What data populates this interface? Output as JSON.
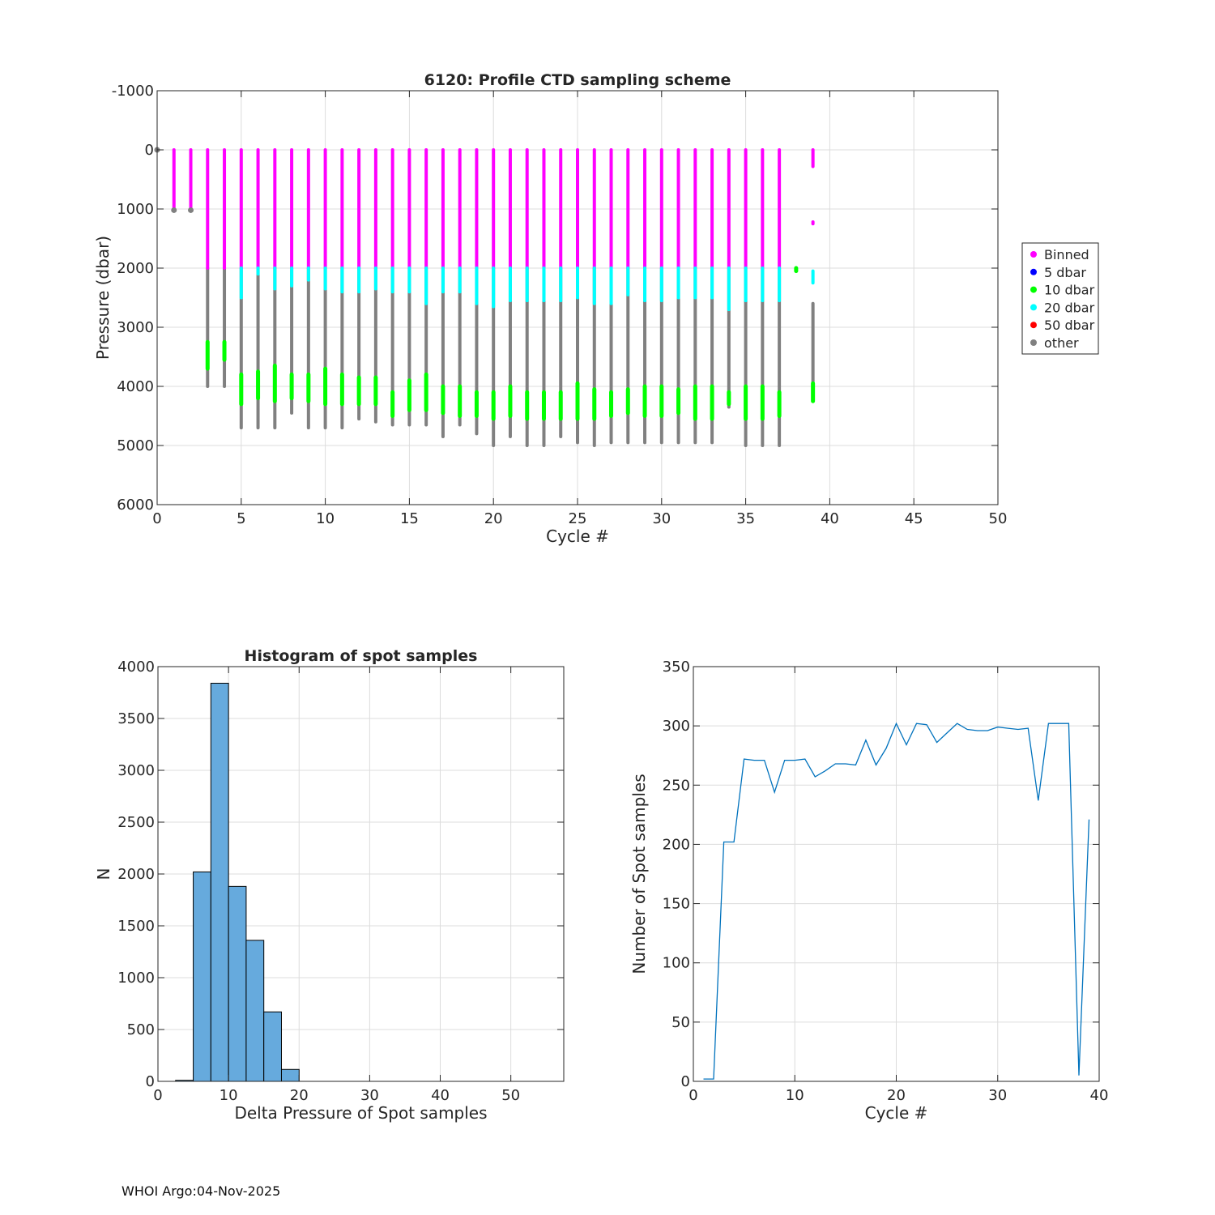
{
  "footer": "WHOI Argo:04-Nov-2025",
  "chart_data": [
    {
      "type": "scatter",
      "title": "6120: Profile CTD sampling scheme",
      "xlabel": "Cycle #",
      "ylabel": "Pressure (dbar)",
      "xlim": [
        0,
        50
      ],
      "ylim": [
        -1000,
        6000
      ],
      "y_reversed": true,
      "xticks": [
        0,
        5,
        10,
        15,
        20,
        25,
        30,
        35,
        40,
        45,
        50
      ],
      "yticks": [
        -1000,
        0,
        1000,
        2000,
        3000,
        4000,
        5000,
        6000
      ],
      "grid": true,
      "legend_position": "outside-right",
      "legend": [
        {
          "label": "Binned",
          "color": "#ff00ff"
        },
        {
          "label": "5 dbar",
          "color": "#0000ff"
        },
        {
          "label": "10 dbar",
          "color": "#00ff00"
        },
        {
          "label": "20 dbar",
          "color": "#00ffff"
        },
        {
          "label": "50 dbar",
          "color": "#ff0000"
        },
        {
          "label": "other",
          "color": "#808080"
        }
      ],
      "series": [
        {
          "name": "Binned",
          "color": "#ff00ff",
          "segments": [
            [
              1,
              0,
              1000
            ],
            [
              2,
              0,
              1000
            ],
            [
              3,
              0,
              2000
            ],
            [
              4,
              0,
              2000
            ],
            [
              5,
              0,
              2000
            ],
            [
              6,
              0,
              2000
            ],
            [
              7,
              0,
              2000
            ],
            [
              8,
              0,
              2000
            ],
            [
              9,
              0,
              2000
            ],
            [
              10,
              0,
              2000
            ],
            [
              11,
              0,
              2000
            ],
            [
              12,
              0,
              2000
            ],
            [
              13,
              0,
              2000
            ],
            [
              14,
              0,
              2000
            ],
            [
              15,
              0,
              2000
            ],
            [
              16,
              0,
              2000
            ],
            [
              17,
              0,
              2000
            ],
            [
              18,
              0,
              2000
            ],
            [
              19,
              0,
              2000
            ],
            [
              20,
              0,
              2000
            ],
            [
              21,
              0,
              2000
            ],
            [
              22,
              0,
              2000
            ],
            [
              23,
              0,
              2000
            ],
            [
              24,
              0,
              2000
            ],
            [
              25,
              0,
              2000
            ],
            [
              26,
              0,
              2000
            ],
            [
              27,
              0,
              2000
            ],
            [
              28,
              0,
              2000
            ],
            [
              29,
              0,
              2000
            ],
            [
              30,
              0,
              2000
            ],
            [
              31,
              0,
              2000
            ],
            [
              32,
              0,
              2000
            ],
            [
              33,
              0,
              2000
            ],
            [
              34,
              0,
              2000
            ],
            [
              35,
              0,
              2000
            ],
            [
              36,
              0,
              2000
            ],
            [
              37,
              0,
              2000
            ],
            [
              39,
              0,
              280
            ],
            [
              39,
              1220,
              1250
            ]
          ]
        },
        {
          "name": "20 dbar",
          "color": "#00ffff",
          "segments": [
            [
              5,
              2000,
              2500
            ],
            [
              6,
              2000,
              2100
            ],
            [
              7,
              2000,
              2350
            ],
            [
              8,
              2000,
              2300
            ],
            [
              9,
              2000,
              2200
            ],
            [
              10,
              2000,
              2350
            ],
            [
              11,
              2000,
              2400
            ],
            [
              12,
              2000,
              2400
            ],
            [
              13,
              2000,
              2350
            ],
            [
              14,
              2000,
              2400
            ],
            [
              15,
              2000,
              2400
            ],
            [
              16,
              2000,
              2600
            ],
            [
              17,
              2000,
              2400
            ],
            [
              18,
              2000,
              2400
            ],
            [
              19,
              2000,
              2600
            ],
            [
              20,
              2000,
              2650
            ],
            [
              21,
              2000,
              2550
            ],
            [
              22,
              2000,
              2550
            ],
            [
              23,
              2000,
              2550
            ],
            [
              24,
              2000,
              2550
            ],
            [
              25,
              2000,
              2500
            ],
            [
              26,
              2000,
              2600
            ],
            [
              27,
              2000,
              2600
            ],
            [
              28,
              2000,
              2450
            ],
            [
              29,
              2000,
              2550
            ],
            [
              30,
              2000,
              2550
            ],
            [
              31,
              2000,
              2500
            ],
            [
              32,
              2000,
              2500
            ],
            [
              33,
              2000,
              2500
            ],
            [
              34,
              2000,
              2700
            ],
            [
              35,
              2000,
              2550
            ],
            [
              36,
              2000,
              2550
            ],
            [
              37,
              2000,
              2550
            ],
            [
              39,
              2050,
              2250
            ]
          ]
        },
        {
          "name": "10 dbar",
          "color": "#00ff00",
          "segments": [
            [
              3,
              3250,
              3700
            ],
            [
              4,
              3250,
              3550
            ],
            [
              5,
              3800,
              4300
            ],
            [
              6,
              3750,
              4200
            ],
            [
              7,
              3650,
              4250
            ],
            [
              8,
              3800,
              4200
            ],
            [
              9,
              3800,
              4250
            ],
            [
              10,
              3700,
              4300
            ],
            [
              11,
              3800,
              4300
            ],
            [
              12,
              3850,
              4300
            ],
            [
              13,
              3850,
              4300
            ],
            [
              14,
              4100,
              4500
            ],
            [
              15,
              3900,
              4400
            ],
            [
              16,
              3800,
              4400
            ],
            [
              17,
              4000,
              4450
            ],
            [
              18,
              4000,
              4500
            ],
            [
              19,
              4100,
              4500
            ],
            [
              20,
              4100,
              4550
            ],
            [
              21,
              4000,
              4500
            ],
            [
              22,
              4100,
              4550
            ],
            [
              23,
              4100,
              4550
            ],
            [
              24,
              4100,
              4550
            ],
            [
              25,
              3950,
              4550
            ],
            [
              26,
              4050,
              4550
            ],
            [
              27,
              4100,
              4500
            ],
            [
              28,
              4050,
              4450
            ],
            [
              29,
              4000,
              4500
            ],
            [
              30,
              4000,
              4500
            ],
            [
              31,
              4050,
              4450
            ],
            [
              32,
              4000,
              4550
            ],
            [
              33,
              4000,
              4550
            ],
            [
              34,
              4100,
              4300
            ],
            [
              35,
              4000,
              4550
            ],
            [
              36,
              4000,
              4550
            ],
            [
              37,
              4100,
              4500
            ],
            [
              39,
              3950,
              4250
            ],
            [
              38,
              2000,
              2050
            ]
          ]
        },
        {
          "name": "other",
          "color": "#808080",
          "segments": [
            [
              3,
              2000,
              4000
            ],
            [
              4,
              2000,
              4000
            ],
            [
              5,
              2000,
              4700
            ],
            [
              6,
              2000,
              4700
            ],
            [
              7,
              2000,
              4700
            ],
            [
              8,
              2000,
              4450
            ],
            [
              9,
              2000,
              4700
            ],
            [
              10,
              2000,
              4700
            ],
            [
              11,
              2000,
              4700
            ],
            [
              12,
              2000,
              4550
            ],
            [
              13,
              2000,
              4600
            ],
            [
              14,
              2000,
              4650
            ],
            [
              15,
              2000,
              4650
            ],
            [
              16,
              2000,
              4650
            ],
            [
              17,
              2000,
              4850
            ],
            [
              18,
              2000,
              4650
            ],
            [
              19,
              2000,
              4800
            ],
            [
              20,
              2000,
              5000
            ],
            [
              21,
              2000,
              4850
            ],
            [
              22,
              2000,
              5000
            ],
            [
              23,
              2000,
              5000
            ],
            [
              24,
              2000,
              4850
            ],
            [
              25,
              2000,
              4950
            ],
            [
              26,
              2000,
              5000
            ],
            [
              27,
              2000,
              4950
            ],
            [
              28,
              2000,
              4950
            ],
            [
              29,
              2000,
              4950
            ],
            [
              30,
              2000,
              4950
            ],
            [
              31,
              2000,
              4950
            ],
            [
              32,
              2000,
              4950
            ],
            [
              33,
              2000,
              4950
            ],
            [
              34,
              2000,
              4350
            ],
            [
              35,
              2000,
              5000
            ],
            [
              36,
              2000,
              5000
            ],
            [
              37,
              2000,
              5000
            ],
            [
              39,
              2600,
              4200
            ]
          ]
        }
      ],
      "points": [
        {
          "x": 0,
          "y": 0,
          "color": "#808080"
        },
        {
          "x": 1,
          "y": 1020,
          "color": "#808080"
        },
        {
          "x": 2,
          "y": 1020,
          "color": "#808080"
        }
      ]
    },
    {
      "type": "bar",
      "title": "Histogram of spot samples",
      "xlabel": "Delta Pressure of Spot samples",
      "ylabel": "N",
      "xlim": [
        0,
        57.5
      ],
      "ylim": [
        0,
        4000
      ],
      "xticks": [
        0,
        10,
        20,
        30,
        40,
        50
      ],
      "yticks": [
        0,
        500,
        1000,
        1500,
        2000,
        2500,
        3000,
        3500,
        4000
      ],
      "grid": true,
      "bin_width": 2.5,
      "bin_edges_start": [
        2.5,
        5,
        7.5,
        10,
        12.5,
        15,
        17.5
      ],
      "values": [
        10,
        2020,
        3840,
        1880,
        1360,
        670,
        115
      ],
      "bar_color": "#66aadd"
    },
    {
      "type": "line",
      "title": "",
      "xlabel": "Cycle #",
      "ylabel": "Number of Spot samples",
      "xlim": [
        0,
        40
      ],
      "ylim": [
        0,
        350
      ],
      "xticks": [
        0,
        10,
        20,
        30,
        40
      ],
      "yticks": [
        0,
        50,
        100,
        150,
        200,
        250,
        300,
        350
      ],
      "grid": true,
      "line_color": "#0072bd",
      "x": [
        1,
        2,
        3,
        4,
        5,
        6,
        7,
        8,
        9,
        10,
        11,
        12,
        13,
        14,
        15,
        16,
        17,
        18,
        19,
        20,
        21,
        22,
        23,
        24,
        25,
        26,
        27,
        28,
        29,
        30,
        31,
        32,
        33,
        34,
        35,
        36,
        37,
        38,
        39
      ],
      "y": [
        2,
        2,
        202,
        202,
        272,
        271,
        271,
        244,
        271,
        271,
        272,
        257,
        262,
        268,
        268,
        267,
        288,
        267,
        281,
        302,
        284,
        302,
        301,
        286,
        294,
        302,
        297,
        296,
        296,
        299,
        298,
        297,
        298,
        237,
        302,
        302,
        302,
        5,
        221
      ]
    }
  ]
}
